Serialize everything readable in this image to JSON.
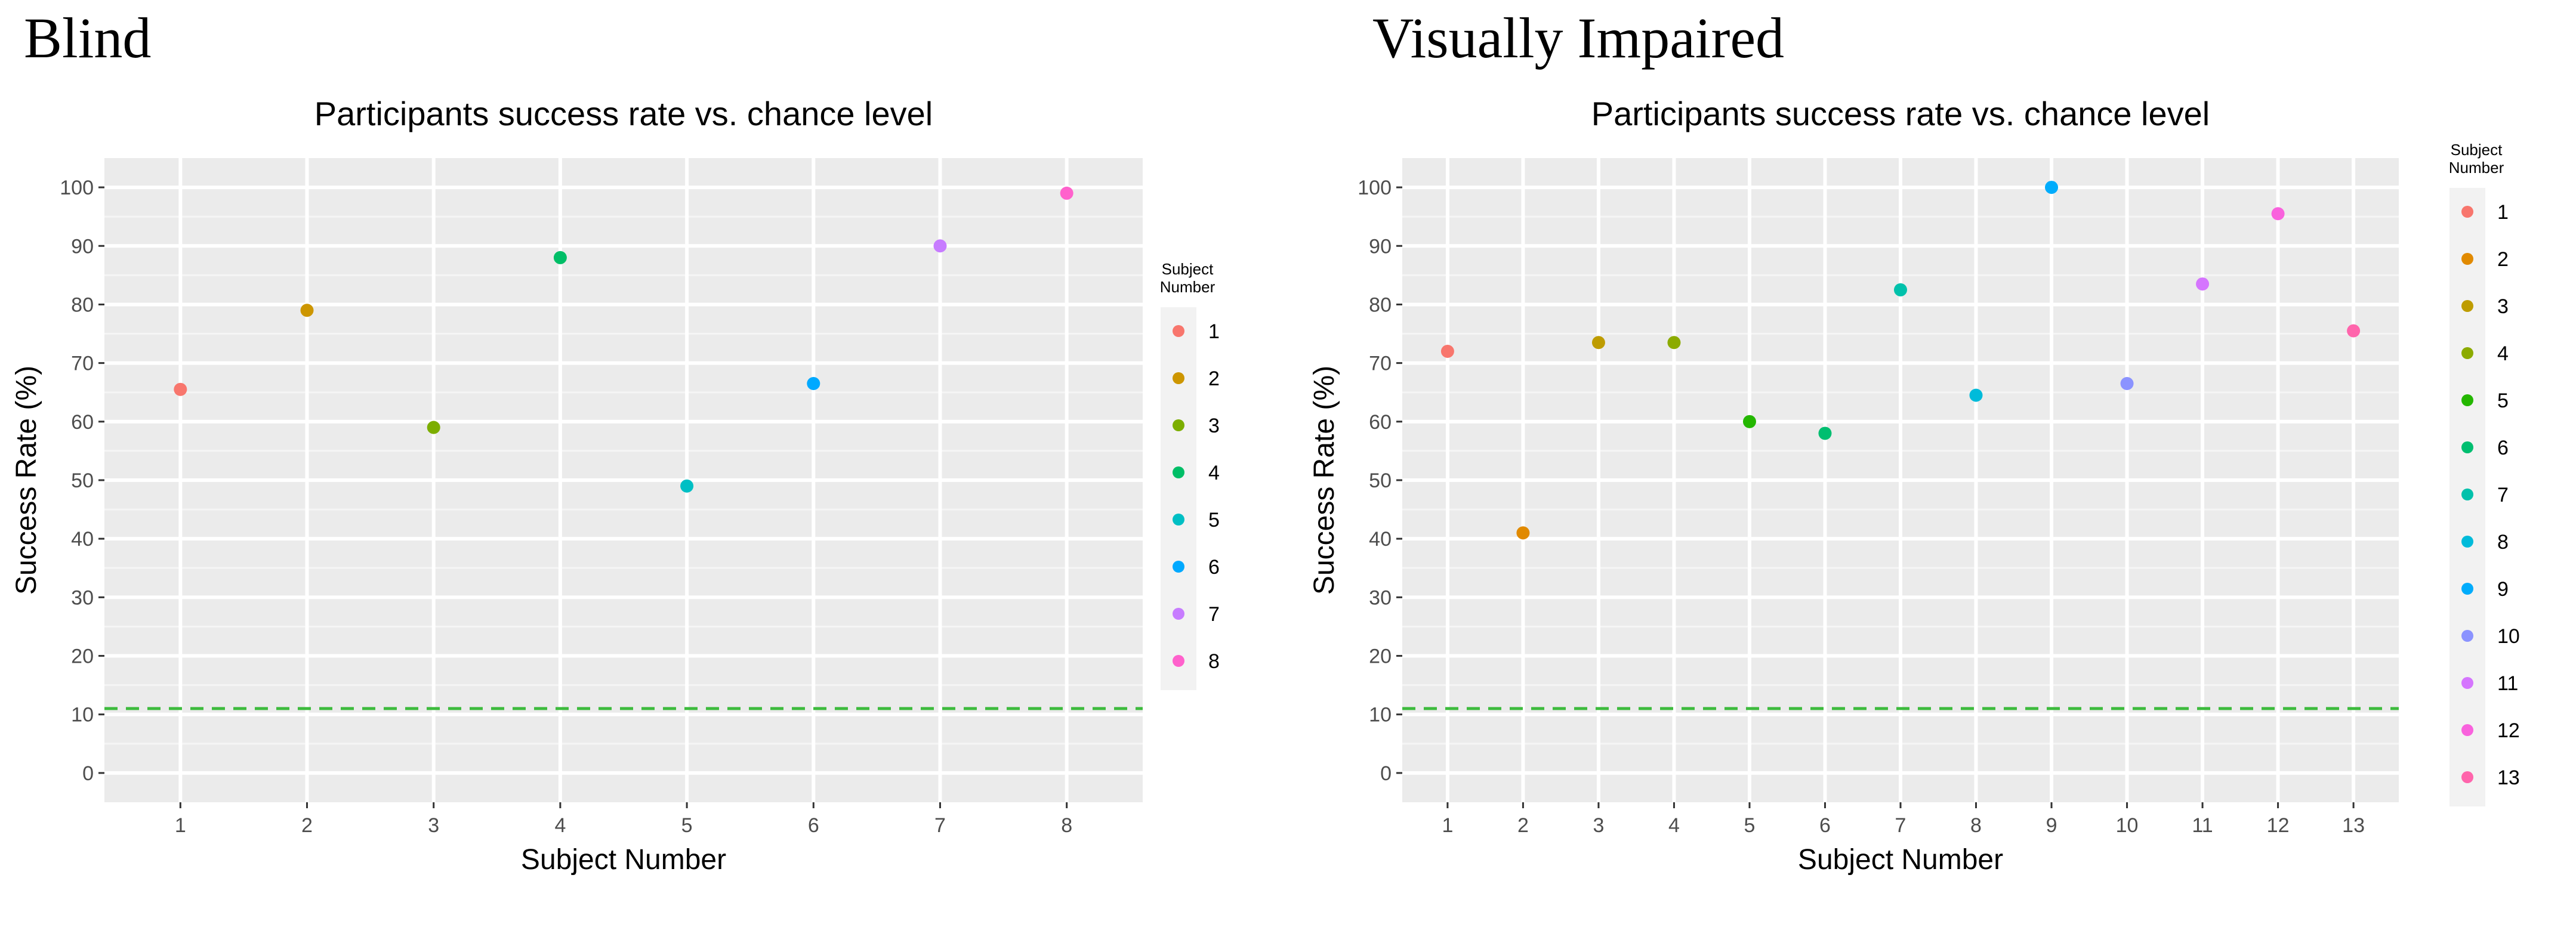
{
  "labels": {
    "left": "Blind",
    "right": "Visually Impaired"
  },
  "chart_data": [
    {
      "type": "scatter",
      "title": "Participants success rate vs. chance level",
      "xlabel": "Subject Number",
      "ylabel": "Success Rate (%)",
      "xticks": [
        "1",
        "2",
        "3",
        "4",
        "5",
        "6",
        "7",
        "8"
      ],
      "yticks": [
        "0",
        "10",
        "20",
        "30",
        "40",
        "50",
        "60",
        "70",
        "80",
        "90",
        "100"
      ],
      "ylim": [
        0,
        100
      ],
      "grid": true,
      "chance_level": 11,
      "chance_color": "#3dbb3d",
      "legend_title": [
        "Subject",
        "Number"
      ],
      "legend_position": "right",
      "points": [
        {
          "x": 1,
          "y": 65.5,
          "label": "1",
          "color": "#F8766D"
        },
        {
          "x": 2,
          "y": 79,
          "label": "2",
          "color": "#CD9600"
        },
        {
          "x": 3,
          "y": 59,
          "label": "3",
          "color": "#7CAE00"
        },
        {
          "x": 4,
          "y": 88,
          "label": "4",
          "color": "#00BE67"
        },
        {
          "x": 5,
          "y": 49,
          "label": "5",
          "color": "#00BFC4"
        },
        {
          "x": 6,
          "y": 66.5,
          "label": "6",
          "color": "#00A9FF"
        },
        {
          "x": 7,
          "y": 90,
          "label": "7",
          "color": "#C77CFF"
        },
        {
          "x": 8,
          "y": 99,
          "label": "8",
          "color": "#FF61CC"
        }
      ]
    },
    {
      "type": "scatter",
      "title": "Participants success rate vs. chance level",
      "xlabel": "Subject Number",
      "ylabel": "Success Rate (%)",
      "xticks": [
        "1",
        "2",
        "3",
        "4",
        "5",
        "6",
        "7",
        "8",
        "9",
        "10",
        "11",
        "12",
        "13"
      ],
      "yticks": [
        "0",
        "10",
        "20",
        "30",
        "40",
        "50",
        "60",
        "70",
        "80",
        "90",
        "100"
      ],
      "ylim": [
        0,
        100
      ],
      "grid": true,
      "chance_level": 11,
      "chance_color": "#3dbb3d",
      "legend_title": [
        "Subject",
        "Number"
      ],
      "legend_position": "right",
      "points": [
        {
          "x": 1,
          "y": 72,
          "label": "1",
          "color": "#F8766D"
        },
        {
          "x": 2,
          "y": 41,
          "label": "2",
          "color": "#E18A00"
        },
        {
          "x": 3,
          "y": 73.5,
          "label": "3",
          "color": "#BE9C00"
        },
        {
          "x": 4,
          "y": 73.5,
          "label": "4",
          "color": "#8CAB00"
        },
        {
          "x": 5,
          "y": 60,
          "label": "5",
          "color": "#24B700"
        },
        {
          "x": 6,
          "y": 58,
          "label": "6",
          "color": "#00BE70"
        },
        {
          "x": 7,
          "y": 82.5,
          "label": "7",
          "color": "#00C1AB"
        },
        {
          "x": 8,
          "y": 64.5,
          "label": "8",
          "color": "#00BBDA"
        },
        {
          "x": 9,
          "y": 100,
          "label": "9",
          "color": "#00ACFC"
        },
        {
          "x": 10,
          "y": 66.5,
          "label": "10",
          "color": "#8B93FF"
        },
        {
          "x": 11,
          "y": 83.5,
          "label": "11",
          "color": "#D575FE"
        },
        {
          "x": 12,
          "y": 95.5,
          "label": "12",
          "color": "#F962DD"
        },
        {
          "x": 13,
          "y": 75.5,
          "label": "13",
          "color": "#FF65AC"
        }
      ]
    }
  ]
}
